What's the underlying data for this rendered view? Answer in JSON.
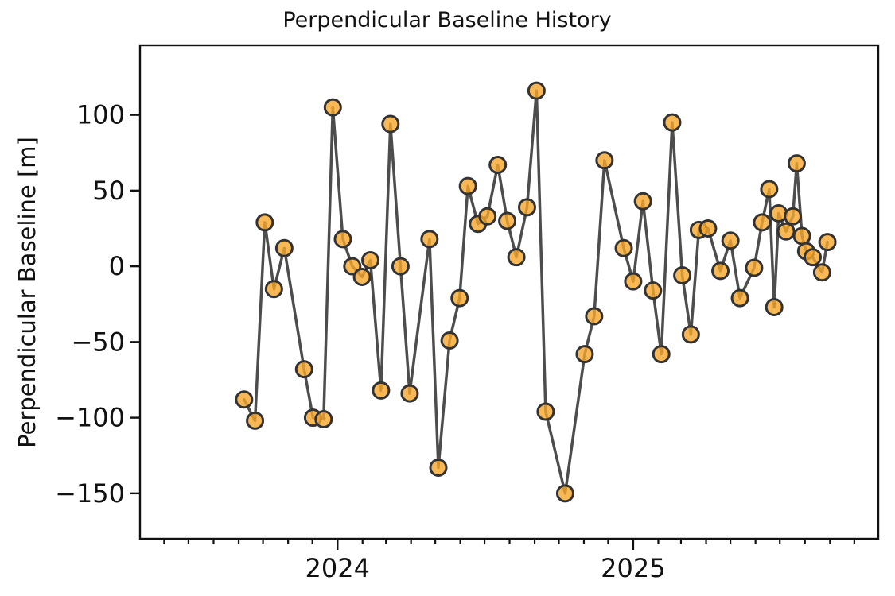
{
  "chart_data": {
    "type": "line",
    "title": "Perpendicular Baseline History",
    "xlabel": "",
    "ylabel": "Perpendicular Baseline [m]",
    "xlim": [
      2023.332,
      2025.829
    ],
    "ylim": [
      -180,
      146
    ],
    "grid": false,
    "legend": false,
    "x_major_ticks": [
      {
        "value": 2024,
        "label": "2024"
      },
      {
        "value": 2025,
        "label": "2025"
      }
    ],
    "x_minor_ticks": {
      "unit": "month",
      "labels": false
    },
    "y_ticks": [
      {
        "value": 100,
        "label": "100"
      },
      {
        "value": 50,
        "label": "50"
      },
      {
        "value": 0,
        "label": "0"
      },
      {
        "value": -50,
        "label": "−50"
      },
      {
        "value": -100,
        "label": "−100"
      },
      {
        "value": -150,
        "label": "−150"
      }
    ],
    "colors": {
      "line": "#4d4d4d",
      "marker_fill": "#F7A62C",
      "marker_edge": "#333333",
      "spine": "#111111",
      "background": "#ffffff"
    },
    "series": [
      {
        "name": "perpendicular baseline",
        "marker": "circle",
        "points": [
          [
            2023.684,
            -88
          ],
          [
            2023.721,
            -102
          ],
          [
            2023.754,
            29
          ],
          [
            2023.785,
            -15
          ],
          [
            2023.82,
            12
          ],
          [
            2023.887,
            -68
          ],
          [
            2023.917,
            -100
          ],
          [
            2023.953,
            -101
          ],
          [
            2023.984,
            105
          ],
          [
            2024.018,
            18
          ],
          [
            2024.05,
            0
          ],
          [
            2024.083,
            -7
          ],
          [
            2024.111,
            4
          ],
          [
            2024.147,
            -82
          ],
          [
            2024.179,
            94
          ],
          [
            2024.213,
            0
          ],
          [
            2024.244,
            -84
          ],
          [
            2024.311,
            18
          ],
          [
            2024.341,
            -133
          ],
          [
            2024.379,
            -49
          ],
          [
            2024.413,
            -21
          ],
          [
            2024.441,
            53
          ],
          [
            2024.475,
            28
          ],
          [
            2024.507,
            33
          ],
          [
            2024.542,
            67
          ],
          [
            2024.574,
            30
          ],
          [
            2024.605,
            6
          ],
          [
            2024.641,
            39
          ],
          [
            2024.673,
            116
          ],
          [
            2024.704,
            -96
          ],
          [
            2024.77,
            -150
          ],
          [
            2024.836,
            -58
          ],
          [
            2024.868,
            -33
          ],
          [
            2024.903,
            70
          ],
          [
            2024.968,
            12
          ],
          [
            2025.0,
            -10
          ],
          [
            2025.033,
            43
          ],
          [
            2025.067,
            -16
          ],
          [
            2025.095,
            -58
          ],
          [
            2025.132,
            95
          ],
          [
            2025.166,
            -6
          ],
          [
            2025.195,
            -45
          ],
          [
            2025.222,
            24
          ],
          [
            2025.253,
            25
          ],
          [
            2025.295,
            -3
          ],
          [
            2025.329,
            17
          ],
          [
            2025.361,
            -21
          ],
          [
            2025.409,
            -1
          ],
          [
            2025.436,
            29
          ],
          [
            2025.46,
            51
          ],
          [
            2025.477,
            -27
          ],
          [
            2025.492,
            35
          ],
          [
            2025.517,
            23
          ],
          [
            2025.54,
            33
          ],
          [
            2025.553,
            68
          ],
          [
            2025.571,
            20
          ],
          [
            2025.585,
            10
          ],
          [
            2025.607,
            6
          ],
          [
            2025.639,
            -4
          ],
          [
            2025.657,
            16
          ]
        ]
      }
    ]
  }
}
